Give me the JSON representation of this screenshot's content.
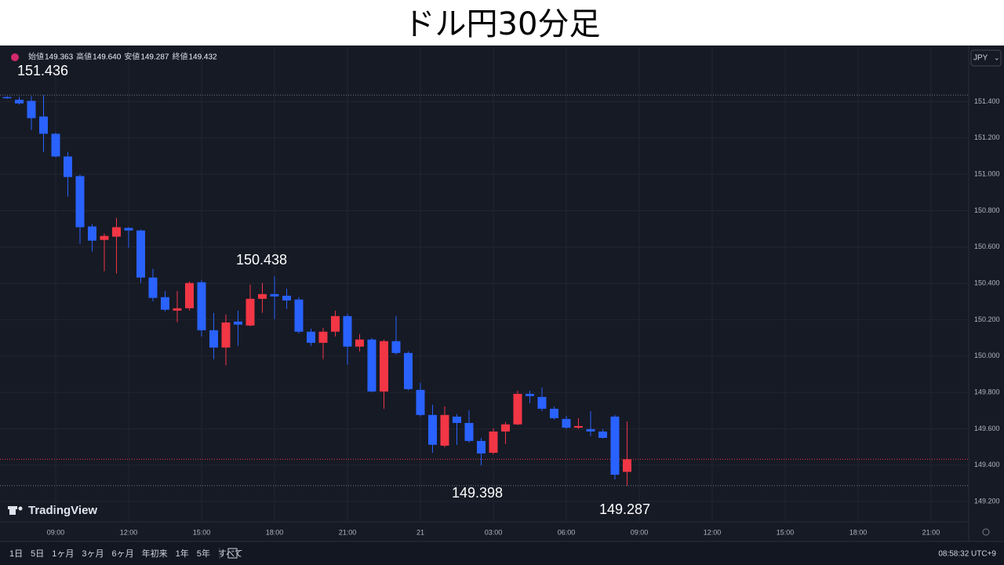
{
  "header": {
    "title": "ドル円30分足"
  },
  "legend": [
    {
      "label": "始値",
      "value": "149.363"
    },
    {
      "label": "高値",
      "value": "149.640"
    },
    {
      "label": "安値",
      "value": "149.287"
    },
    {
      "label": "終値",
      "value": "149.432"
    }
  ],
  "currency": "JPY",
  "logo": "TradingView",
  "range_buttons": [
    "1日",
    "5日",
    "1ヶ月",
    "3ヶ月",
    "6ヶ月",
    "年初来",
    "1年",
    "5年",
    "すべて"
  ],
  "clock": "08:58:32 UTC+9",
  "chart_data": {
    "type": "candlestick",
    "x": [
      0,
      1,
      2,
      3,
      4,
      5,
      6,
      7,
      8,
      9,
      10,
      11,
      12,
      13,
      14,
      15,
      16,
      17,
      18,
      19,
      20,
      21,
      22,
      23,
      24,
      25,
      26,
      27,
      28,
      29,
      30,
      31,
      32,
      33,
      34,
      35,
      36,
      37,
      38,
      39,
      40,
      41,
      42,
      43,
      44,
      45,
      46,
      47,
      48,
      49,
      50,
      51
    ],
    "open": [
      151.425,
      151.41,
      151.404,
      151.318,
      151.223,
      151.098,
      150.99,
      150.713,
      150.639,
      150.657,
      150.705,
      150.691,
      150.432,
      150.324,
      150.25,
      150.263,
      150.406,
      150.142,
      150.047,
      150.19,
      150.168,
      150.315,
      150.341,
      150.332,
      150.311,
      150.134,
      150.073,
      150.134,
      150.22,
      150.052,
      150.091,
      149.805,
      150.082,
      150.017,
      149.814,
      149.676,
      149.507,
      149.667,
      149.632,
      149.533,
      149.468,
      149.585,
      149.624,
      149.792,
      149.775,
      149.71,
      149.654,
      149.606,
      149.598,
      149.585,
      149.667,
      149.363
    ],
    "high": [
      151.43,
      151.426,
      151.43,
      151.436,
      151.23,
      151.123,
      150.998,
      150.726,
      150.674,
      150.76,
      150.709,
      150.696,
      150.48,
      150.358,
      150.358,
      150.41,
      150.419,
      150.237,
      150.229,
      150.25,
      150.393,
      150.402,
      150.438,
      150.371,
      150.324,
      150.151,
      150.155,
      150.25,
      150.233,
      150.121,
      150.099,
      150.091,
      150.22,
      150.026,
      149.853,
      149.732,
      149.723,
      149.68,
      149.702,
      149.55,
      149.602,
      149.637,
      149.81,
      149.81,
      149.827,
      149.723,
      149.671,
      149.658,
      149.697,
      149.598,
      149.676,
      149.64
    ],
    "low": [
      151.415,
      151.383,
      151.244,
      151.123,
      151.093,
      150.877,
      150.618,
      150.575,
      150.467,
      150.454,
      150.596,
      150.402,
      150.302,
      150.246,
      150.186,
      150.25,
      150.108,
      149.983,
      149.948,
      150.056,
      150.164,
      150.238,
      150.203,
      150.259,
      150.125,
      150.056,
      149.983,
      150.108,
      149.952,
      150.026,
      149.801,
      149.71,
      150.008,
      149.81,
      149.667,
      149.468,
      149.498,
      149.511,
      149.524,
      149.398,
      149.46,
      149.516,
      149.62,
      149.741,
      149.697,
      149.65,
      149.598,
      149.598,
      149.559,
      149.546,
      149.321,
      149.287
    ],
    "close": [
      151.42,
      151.39,
      151.309,
      151.223,
      151.098,
      150.985,
      150.709,
      150.635,
      150.661,
      150.709,
      150.691,
      150.432,
      150.32,
      150.255,
      150.263,
      150.402,
      150.142,
      150.047,
      150.185,
      150.173,
      150.315,
      150.341,
      150.328,
      150.306,
      150.134,
      150.073,
      150.134,
      150.22,
      150.052,
      150.091,
      149.805,
      150.082,
      150.017,
      149.818,
      149.676,
      149.512,
      149.676,
      149.632,
      149.533,
      149.464,
      149.585,
      149.624,
      149.792,
      149.78,
      149.71,
      149.658,
      149.606,
      149.615,
      149.585,
      149.55,
      149.347,
      149.432
    ],
    "up_color": "#f23645",
    "down_color": "#2962ff",
    "xlim": [
      -0.58,
      79.1
    ],
    "xticks": [
      {
        "value": 4,
        "label": "09:00"
      },
      {
        "value": 10,
        "label": "12:00"
      },
      {
        "value": 16,
        "label": "15:00"
      },
      {
        "value": 22,
        "label": "18:00"
      },
      {
        "value": 28,
        "label": "21:00"
      },
      {
        "value": 34,
        "label": "21"
      },
      {
        "value": 40,
        "label": "03:00"
      },
      {
        "value": 46,
        "label": "06:00"
      },
      {
        "value": 52,
        "label": "09:00"
      },
      {
        "value": 58,
        "label": "12:00"
      },
      {
        "value": 64,
        "label": "15:00"
      },
      {
        "value": 70,
        "label": "18:00"
      },
      {
        "value": 76,
        "label": "21:00"
      }
    ],
    "ylim": [
      148.98,
      151.7
    ],
    "yticks": [
      {
        "value": 149.2,
        "label": "149.200"
      },
      {
        "value": 149.4,
        "label": "149.400"
      },
      {
        "value": 149.6,
        "label": "149.600"
      },
      {
        "value": 149.8,
        "label": "149.800"
      },
      {
        "value": 150.0,
        "label": "150.000"
      },
      {
        "value": 150.2,
        "label": "150.200"
      },
      {
        "value": 150.4,
        "label": "150.400"
      },
      {
        "value": 150.6,
        "label": "150.600"
      },
      {
        "value": 150.8,
        "label": "150.800"
      },
      {
        "value": 151.0,
        "label": "151.000"
      },
      {
        "value": 151.2,
        "label": "151.200"
      },
      {
        "value": 151.4,
        "label": "151.400"
      }
    ],
    "grid": true,
    "annotations": [
      "151.436",
      "150.438",
      "149.398",
      "149.287"
    ]
  }
}
